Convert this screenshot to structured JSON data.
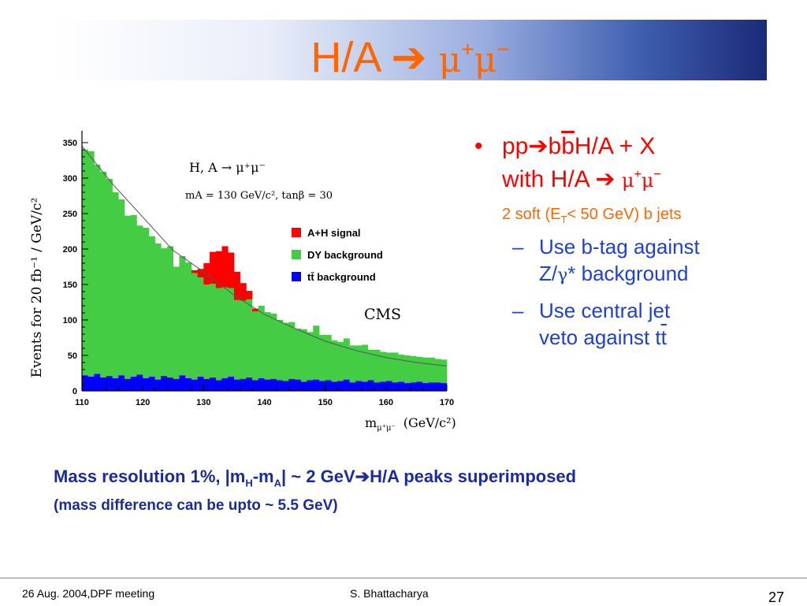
{
  "slide": {
    "title_prefix": "H/A ",
    "title_arrow": "➔",
    "title_mu": "μ",
    "title_plus": "+",
    "title_minus": "−"
  },
  "bullet1": {
    "pp": "pp",
    "arrow": "➔",
    "b1": "b",
    "b2": "b",
    "rest": "H/A + X",
    "line2a": "with H/A ",
    "mu": "μ",
    "plus": "+",
    "minus": "−"
  },
  "softjets": {
    "pre": "2 soft (E",
    "sub": "T",
    "post": "< 50 GeV) b jets"
  },
  "sub1": {
    "dash": "–",
    "line1": "Use b-tag against",
    "line2a": "Z/",
    "gamma": "γ",
    "line2b": "* background"
  },
  "sub2": {
    "dash": "–",
    "line1": "Use central jet",
    "line2a": "veto against t",
    "tbar": "t"
  },
  "mass": {
    "a": "Mass resolution 1%, |m",
    "sub_h": "H",
    "b": "-m",
    "sub_a": "A",
    "c": "| ~ 2 GeV",
    "arrow": "➔",
    "d": "H/A peaks superimposed",
    "line2": "(mass difference can be upto ~ 5.5 GeV)"
  },
  "footer": {
    "left": "26 Aug. 2004,DPF meeting",
    "center": "S. Bhattacharya",
    "page": "27"
  },
  "colors": {
    "signal": "#ff0000",
    "dy": "#44cc44",
    "tt": "#0000ff",
    "title": "#ff6600",
    "text_blue": "#1e3fd8"
  },
  "chart_data": {
    "type": "area",
    "stacked": true,
    "ylabel": "Events for 20 fb⁻¹ / GeV/c²",
    "xlabel_m": "m",
    "xlabel_sub": "μ⁺μ⁻",
    "xlabel_unit": "(GeV/c²)",
    "annot1": "H, A → μ⁺μ⁻",
    "annot2": "mA = 130 GeV/c², tanβ = 30",
    "annot3": "CMS",
    "legend": [
      "A+H signal",
      "DY background",
      "tt̄ background"
    ],
    "xlim": [
      110,
      170
    ],
    "ylim": [
      0,
      360
    ],
    "xticks": [
      "110",
      "120",
      "130",
      "140",
      "150",
      "160",
      "170"
    ],
    "yticks": [
      "0",
      "50",
      "100",
      "150",
      "200",
      "250",
      "300",
      "350"
    ],
    "bin_width_gev": 1,
    "x": [
      110,
      111,
      112,
      113,
      114,
      115,
      116,
      117,
      118,
      119,
      120,
      121,
      122,
      123,
      124,
      125,
      126,
      127,
      128,
      129,
      130,
      131,
      132,
      133,
      134,
      135,
      136,
      137,
      138,
      139,
      140,
      141,
      142,
      143,
      144,
      145,
      146,
      147,
      148,
      149,
      150,
      151,
      152,
      153,
      154,
      155,
      156,
      157,
      158,
      159,
      160,
      161,
      162,
      163,
      164,
      165,
      166,
      167,
      168,
      169
    ],
    "series": [
      {
        "name": "tt̄ background",
        "values": [
          22,
          20,
          24,
          19,
          21,
          18,
          22,
          17,
          20,
          23,
          18,
          20,
          16,
          21,
          19,
          17,
          22,
          18,
          16,
          20,
          17,
          19,
          15,
          18,
          20,
          16,
          17,
          19,
          15,
          18,
          16,
          17,
          15,
          14,
          17,
          16,
          13,
          15,
          16,
          14,
          15,
          13,
          14,
          16,
          12,
          14,
          13,
          15,
          12,
          13,
          14,
          12,
          13,
          11,
          12,
          13,
          11,
          12,
          12,
          11
        ]
      },
      {
        "name": "DY background",
        "values": [
          318,
          318,
          295,
          290,
          278,
          262,
          248,
          230,
          228,
          210,
          212,
          198,
          192,
          180,
          185,
          158,
          168,
          163,
          150,
          140,
          133,
          132,
          130,
          128,
          125,
          112,
          110,
          110,
          97,
          102,
          95,
          92,
          85,
          82,
          80,
          72,
          74,
          68,
          76,
          65,
          64,
          58,
          55,
          58,
          52,
          50,
          52,
          43,
          46,
          42,
          40,
          42,
          38,
          39,
          37,
          35,
          36,
          35,
          33,
          33
        ]
      },
      {
        "name": "A+H signal",
        "values": [
          0,
          0,
          0,
          0,
          0,
          0,
          0,
          0,
          0,
          0,
          0,
          0,
          0,
          0,
          0,
          0,
          0,
          0,
          4,
          12,
          30,
          45,
          52,
          58,
          50,
          40,
          25,
          12,
          4,
          0,
          0,
          0,
          0,
          0,
          0,
          0,
          0,
          0,
          0,
          0,
          0,
          0,
          0,
          0,
          0,
          0,
          0,
          0,
          0,
          0,
          0,
          0,
          0,
          0,
          0,
          0,
          0,
          0,
          0,
          0
        ]
      }
    ],
    "fit_curve": [
      [
        110,
        345
      ],
      [
        115,
        292
      ],
      [
        120,
        245
      ],
      [
        125,
        198
      ],
      [
        130,
        168
      ],
      [
        135,
        135
      ],
      [
        140,
        108
      ],
      [
        145,
        88
      ],
      [
        150,
        70
      ],
      [
        155,
        57
      ],
      [
        160,
        47
      ],
      [
        165,
        40
      ],
      [
        170,
        35
      ]
    ]
  }
}
